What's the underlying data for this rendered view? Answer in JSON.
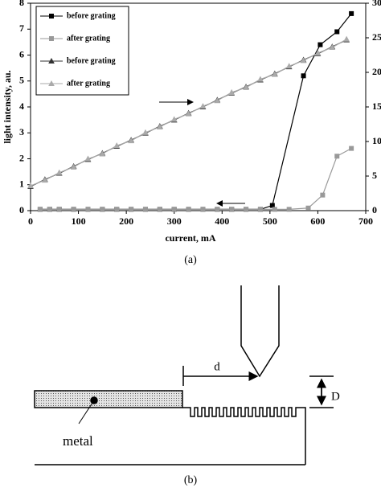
{
  "chart_data": {
    "type": "line",
    "xlabel": "current, mA",
    "ylabel": "light intensity, au.",
    "caption": "(a)",
    "xlim": [
      0,
      700
    ],
    "xticks": [
      0,
      100,
      200,
      300,
      400,
      500,
      600,
      700
    ],
    "ylim": [
      0,
      8
    ],
    "yticks": [
      0,
      1,
      2,
      3,
      4,
      5,
      6,
      7,
      8
    ],
    "y2lim": [
      0,
      30
    ],
    "y2ticks": [
      0,
      5,
      10,
      15,
      20,
      25,
      30
    ],
    "legend": "upper left",
    "series": [
      {
        "name": "before grating",
        "color": "#000000",
        "marker": "square",
        "x": [
          20,
          40,
          60,
          90,
          120,
          150,
          180,
          210,
          240,
          270,
          300,
          330,
          360,
          390,
          420,
          450,
          480,
          505,
          570,
          605,
          640,
          670
        ],
        "values": [
          0.05,
          0.05,
          0.05,
          0.05,
          0.05,
          0.05,
          0.05,
          0.05,
          0.05,
          0.05,
          0.05,
          0.05,
          0.05,
          0.05,
          0.05,
          0.05,
          0.05,
          0.2,
          5.2,
          6.4,
          6.9,
          7.6
        ]
      },
      {
        "name": "after grating",
        "color": "#999999",
        "marker": "square",
        "x": [
          20,
          40,
          60,
          90,
          120,
          150,
          180,
          210,
          240,
          270,
          300,
          330,
          360,
          390,
          420,
          450,
          480,
          510,
          540,
          580,
          610,
          640,
          670
        ],
        "values": [
          0.05,
          0.05,
          0.05,
          0.05,
          0.05,
          0.05,
          0.05,
          0.05,
          0.05,
          0.05,
          0.05,
          0.05,
          0.05,
          0.05,
          0.05,
          0.05,
          0.05,
          0.05,
          0.05,
          0.1,
          0.6,
          2.1,
          2.4
        ]
      },
      {
        "name": "before grating",
        "color": "#333333",
        "marker": "triangle",
        "axis": "y2",
        "x": [
          0,
          30,
          60,
          90,
          120,
          150,
          180,
          210,
          240,
          270,
          300,
          330,
          360,
          390,
          420,
          450,
          480,
          510,
          540,
          570,
          600,
          630,
          660
        ],
        "values": [
          3.5,
          4.5,
          5.4,
          6.4,
          7.4,
          8.3,
          9.3,
          10.2,
          11.2,
          12.2,
          13.1,
          14.1,
          15.0,
          16.0,
          17.0,
          17.9,
          18.9,
          19.8,
          20.8,
          21.8,
          22.7,
          23.7,
          24.7
        ]
      },
      {
        "name": "after grating",
        "color": "#aaaaaa",
        "marker": "triangle",
        "axis": "y2",
        "x": [
          0,
          30,
          60,
          90,
          120,
          150,
          180,
          210,
          240,
          270,
          300,
          330,
          360,
          390,
          420,
          450,
          480,
          510,
          540,
          570,
          600,
          630,
          660
        ],
        "values": [
          3.6,
          4.4,
          5.5,
          6.3,
          7.5,
          8.2,
          9.4,
          10.1,
          11.3,
          12.1,
          13.2,
          14.0,
          15.1,
          15.9,
          17.1,
          17.8,
          19.0,
          19.7,
          20.9,
          21.7,
          22.8,
          23.6,
          24.8
        ]
      }
    ]
  },
  "figure_b": {
    "d_label": "d",
    "D_label": "D",
    "metal_label": "metal",
    "caption": "(b)"
  }
}
